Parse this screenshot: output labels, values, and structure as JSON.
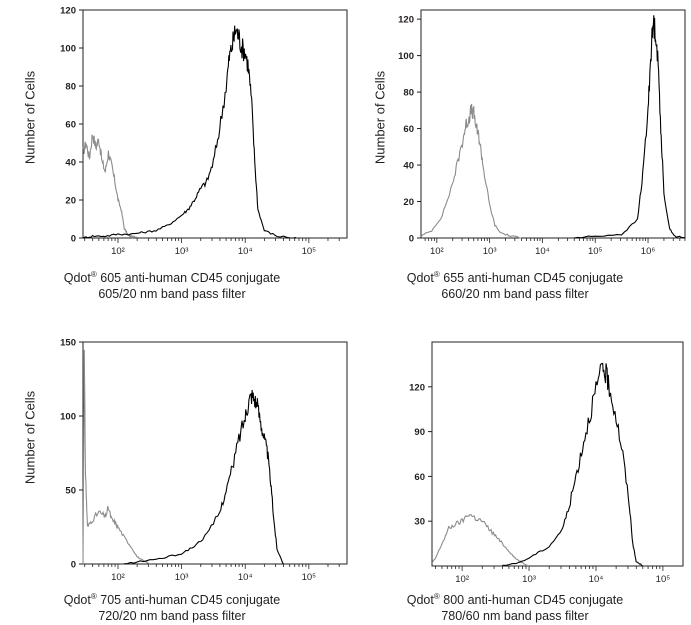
{
  "chart_data": [
    {
      "type": "histogram",
      "ylabel": "Number of Cells",
      "caption_product": "Qdot",
      "caption_reg": "®",
      "caption_rest": " 605 anti-human CD45 conjugate",
      "caption_line2": "605/20 nm band pass filter",
      "y_ticks": [
        "0",
        "20",
        "40",
        "60",
        "80",
        "100",
        "120"
      ],
      "x_ticks": [
        "10²",
        "10³",
        "10⁴",
        "10⁵"
      ],
      "ylim": [
        0,
        120
      ],
      "xlim_log": [
        1.45,
        5.6
      ],
      "series": [
        {
          "color": "#8c8c8c",
          "x": [
            1.45,
            1.5,
            1.55,
            1.6,
            1.65,
            1.7,
            1.75,
            1.8,
            1.85,
            1.9,
            1.95,
            2.0,
            2.05,
            2.1,
            2.15,
            2.2,
            2.3
          ],
          "y": [
            45,
            50,
            42,
            55,
            48,
            52,
            40,
            35,
            45,
            38,
            30,
            20,
            15,
            5,
            2,
            1,
            0
          ]
        },
        {
          "color": "#000000",
          "x": [
            1.45,
            1.6,
            1.8,
            2.0,
            2.2,
            2.4,
            2.6,
            2.8,
            3.0,
            3.1,
            3.2,
            3.3,
            3.4,
            3.5,
            3.6,
            3.7,
            3.75,
            3.8,
            3.85,
            3.9,
            3.95,
            4.0,
            4.05,
            4.1,
            4.15,
            4.2,
            4.3,
            4.5,
            4.8
          ],
          "y": [
            0,
            1,
            1,
            2,
            2,
            3,
            4,
            7,
            12,
            15,
            20,
            26,
            30,
            40,
            58,
            80,
            95,
            102,
            110,
            106,
            100,
            98,
            90,
            72,
            40,
            15,
            4,
            1,
            0
          ]
        }
      ]
    },
    {
      "type": "histogram",
      "ylabel": "Number of Cells",
      "caption_product": "Qdot",
      "caption_reg": "®",
      "caption_rest": " 655 anti-human CD45 conjugate",
      "caption_line2": "660/20 nm band pass filter",
      "y_ticks": [
        "0",
        "20",
        "40",
        "60",
        "80",
        "100",
        "120"
      ],
      "x_ticks": [
        "10²",
        "10³",
        "10⁴",
        "10⁵",
        "10⁶"
      ],
      "ylim": [
        0,
        125
      ],
      "xlim_log": [
        1.7,
        6.7
      ],
      "series": [
        {
          "color": "#8c8c8c",
          "x": [
            1.7,
            1.9,
            2.1,
            2.3,
            2.4,
            2.5,
            2.55,
            2.6,
            2.65,
            2.7,
            2.75,
            2.8,
            2.85,
            2.9,
            3.0,
            3.1,
            3.2,
            3.4,
            3.6
          ],
          "y": [
            1,
            4,
            12,
            30,
            42,
            55,
            62,
            65,
            70,
            68,
            60,
            55,
            45,
            35,
            18,
            7,
            3,
            1,
            0
          ]
        },
        {
          "color": "#000000",
          "x": [
            4.6,
            5.0,
            5.5,
            5.8,
            5.9,
            6.0,
            6.05,
            6.1,
            6.15,
            6.2,
            6.25,
            6.3,
            6.4,
            6.5,
            6.7
          ],
          "y": [
            0,
            1,
            2,
            10,
            35,
            70,
            100,
            118,
            112,
            90,
            55,
            25,
            6,
            1,
            0
          ]
        }
      ]
    },
    {
      "type": "histogram",
      "ylabel": "Number of Cells",
      "caption_product": "Qdot",
      "caption_reg": "®",
      "caption_rest": " 705 anti-human CD45 conjugate",
      "caption_line2": "720/20 nm band pass filter",
      "y_ticks": [
        "0",
        "50",
        "100",
        "150"
      ],
      "x_ticks": [
        "10²",
        "10³",
        "10⁴",
        "10⁵"
      ],
      "ylim": [
        0,
        150
      ],
      "xlim_log": [
        1.45,
        5.6
      ],
      "series": [
        {
          "color": "#8c8c8c",
          "x": [
            1.45,
            1.47,
            1.49,
            1.52,
            1.6,
            1.7,
            1.8,
            1.85,
            1.9,
            1.95,
            2.0,
            2.1,
            2.2,
            2.3,
            2.4,
            2.5
          ],
          "y": [
            0,
            140,
            60,
            25,
            30,
            35,
            32,
            38,
            30,
            28,
            25,
            18,
            12,
            5,
            2,
            0
          ]
        },
        {
          "color": "#000000",
          "x": [
            2.1,
            2.4,
            2.7,
            3.0,
            3.2,
            3.4,
            3.6,
            3.7,
            3.8,
            3.9,
            4.0,
            4.05,
            4.1,
            4.15,
            4.2,
            4.25,
            4.3,
            4.35,
            4.4,
            4.45,
            4.5,
            4.6
          ],
          "y": [
            0,
            2,
            4,
            7,
            12,
            20,
            35,
            50,
            65,
            85,
            100,
            110,
            115,
            112,
            105,
            95,
            85,
            75,
            55,
            30,
            10,
            0
          ]
        }
      ]
    },
    {
      "type": "histogram",
      "ylabel": "",
      "caption_product": "Qdot",
      "caption_reg": "®",
      "caption_rest": " 800 anti-human CD45 conjugate",
      "caption_line2": "780/60 nm band pass filter",
      "y_ticks": [
        "30",
        "60",
        "90",
        "120"
      ],
      "x_ticks": [
        "10²",
        "10³",
        "10⁴",
        "10⁵"
      ],
      "ylim": [
        0,
        150
      ],
      "xlim_log": [
        1.55,
        5.3
      ],
      "series": [
        {
          "color": "#8c8c8c",
          "x": [
            1.55,
            1.6,
            1.7,
            1.8,
            1.9,
            2.0,
            2.1,
            2.2,
            2.3,
            2.4,
            2.5,
            2.6,
            2.7,
            2.8,
            2.9,
            3.0
          ],
          "y": [
            2,
            5,
            15,
            25,
            28,
            30,
            35,
            32,
            30,
            25,
            20,
            15,
            10,
            5,
            2,
            0
          ]
        },
        {
          "color": "#000000",
          "x": [
            2.6,
            2.9,
            3.1,
            3.3,
            3.5,
            3.6,
            3.7,
            3.8,
            3.9,
            4.0,
            4.1,
            4.15,
            4.2,
            4.3,
            4.4,
            4.5,
            4.55,
            4.6,
            4.7
          ],
          "y": [
            0,
            3,
            8,
            13,
            25,
            40,
            60,
            80,
            100,
            118,
            132,
            128,
            120,
            100,
            75,
            40,
            15,
            3,
            0
          ]
        }
      ]
    }
  ]
}
